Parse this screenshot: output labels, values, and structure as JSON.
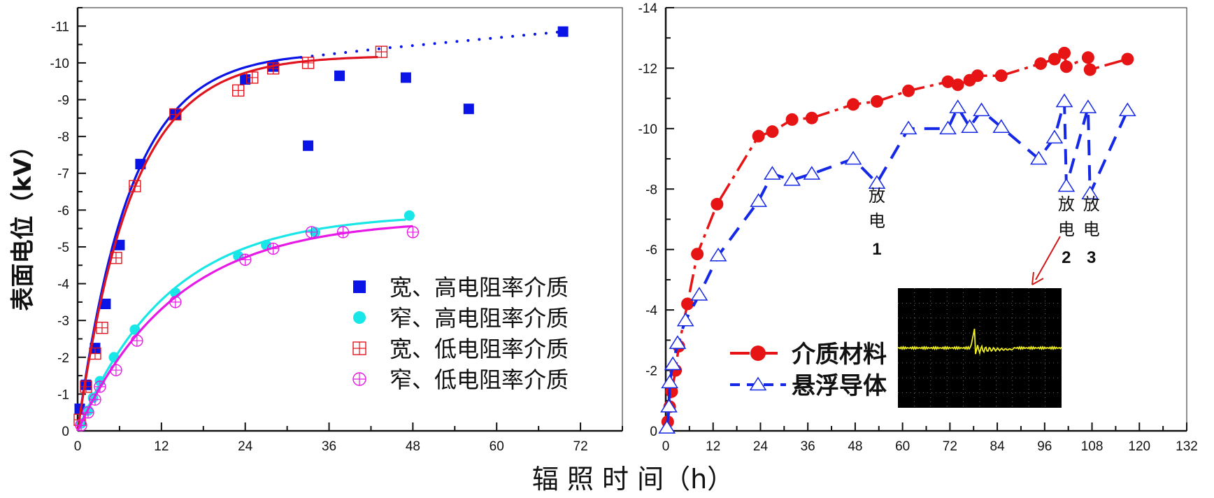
{
  "shared": {
    "xlabel": "辐 照 时 间（h）"
  },
  "chart_data": [
    {
      "type": "scatter",
      "ylabel": "表面电位（kV）",
      "xlim": [
        0,
        78
      ],
      "ylim": [
        0,
        -11.5
      ],
      "x_ticks": [
        0,
        12,
        24,
        36,
        48,
        60,
        72
      ],
      "y_ticks": [
        0,
        -1,
        -2,
        -3,
        -4,
        -5,
        -6,
        -7,
        -8,
        -9,
        -10,
        -11
      ],
      "legend_position": "center-right",
      "series": [
        {
          "name": "宽、高电阻率介质",
          "marker": "filled-square",
          "color": "#0a14e6",
          "points": [
            [
              0.3,
              -0.6
            ],
            [
              1.2,
              -1.25
            ],
            [
              2.5,
              -2.25
            ],
            [
              4,
              -3.45
            ],
            [
              6,
              -5.05
            ],
            [
              9,
              -7.25
            ],
            [
              14,
              -8.6
            ],
            [
              24,
              -9.55
            ],
            [
              28,
              -9.9
            ],
            [
              33,
              -7.75
            ],
            [
              37.5,
              -9.65
            ],
            [
              47,
              -9.6
            ],
            [
              56,
              -8.75
            ],
            [
              69.5,
              -10.85
            ]
          ],
          "fit": {
            "form": "a(1-exp(-t/tau))",
            "a": -10.3,
            "tau": 7.5,
            "t_end": 32
          },
          "extension_dotted": [
            [
              32,
              -10.15
            ],
            [
              44,
              -10.4
            ],
            [
              69.5,
              -10.85
            ]
          ]
        },
        {
          "name": "窄、高电阻率介质",
          "marker": "filled-circle",
          "color": "#19e6e6",
          "points": [
            [
              0.5,
              -0.2
            ],
            [
              1.5,
              -0.55
            ],
            [
              2.2,
              -0.9
            ],
            [
              3.2,
              -1.35
            ],
            [
              5.2,
              -2.0
            ],
            [
              8.2,
              -2.75
            ],
            [
              14,
              -3.75
            ],
            [
              23,
              -4.75
            ],
            [
              27,
              -5.05
            ],
            [
              34,
              -5.4
            ],
            [
              47.5,
              -5.85
            ]
          ],
          "fit": {
            "form": "a(1-exp(-t/tau))",
            "a": -5.9,
            "tau": 13,
            "t_end": 47
          }
        },
        {
          "name": "宽、低电阻率介质",
          "marker": "open-square-plus",
          "color": "#e0141e",
          "points": [
            [
              0.3,
              -0.3
            ],
            [
              1.2,
              -1.2
            ],
            [
              2.5,
              -2.1
            ],
            [
              3.5,
              -2.8
            ],
            [
              5.5,
              -4.7
            ],
            [
              8.2,
              -6.65
            ],
            [
              14,
              -8.6
            ],
            [
              23,
              -9.25
            ],
            [
              25,
              -9.6
            ],
            [
              28,
              -9.85
            ],
            [
              33,
              -10.0
            ],
            [
              43.5,
              -10.3
            ]
          ],
          "fit": {
            "form": "a(1-exp(-t/tau))",
            "a": -10.2,
            "tau": 7.8,
            "t_end": 43
          }
        },
        {
          "name": "窄、低电阻率介质",
          "marker": "open-circle-plus",
          "color": "#e619e6",
          "points": [
            [
              0.5,
              -0.15
            ],
            [
              1.5,
              -0.5
            ],
            [
              2.5,
              -0.85
            ],
            [
              3.2,
              -1.2
            ],
            [
              5.5,
              -1.65
            ],
            [
              8.5,
              -2.45
            ],
            [
              14,
              -3.5
            ],
            [
              24,
              -4.65
            ],
            [
              28,
              -4.95
            ],
            [
              33.5,
              -5.4
            ],
            [
              38,
              -5.4
            ],
            [
              48,
              -5.4
            ]
          ],
          "fit": {
            "form": "a(1-exp(-t/tau))",
            "a": -5.75,
            "tau": 14,
            "t_end": 48
          }
        }
      ]
    },
    {
      "type": "line",
      "xlim": [
        0,
        132
      ],
      "ylim": [
        0,
        -14
      ],
      "x_ticks": [
        0,
        12,
        24,
        36,
        48,
        60,
        72,
        84,
        96,
        108,
        120,
        132
      ],
      "y_ticks": [
        0,
        -2,
        -4,
        -6,
        -8,
        -10,
        -12,
        -14
      ],
      "legend_position": "bottom-center",
      "series": [
        {
          "name": "介质材料",
          "marker": "filled-circle",
          "line": "dash-dot",
          "color": "#e61414",
          "points": [
            [
              0.5,
              -0.3
            ],
            [
              1,
              -0.8
            ],
            [
              1.5,
              -1.3
            ],
            [
              2.5,
              -2.0
            ],
            [
              3.3,
              -2.8
            ],
            [
              5.5,
              -4.2
            ],
            [
              8,
              -5.85
            ],
            [
              13,
              -7.5
            ],
            [
              23.5,
              -9.75
            ],
            [
              27,
              -9.9
            ],
            [
              32,
              -10.3
            ],
            [
              37,
              -10.35
            ],
            [
              47.5,
              -10.8
            ],
            [
              53.5,
              -10.9
            ],
            [
              61.5,
              -11.25
            ],
            [
              71.5,
              -11.55
            ],
            [
              74,
              -11.45
            ],
            [
              77,
              -11.6
            ],
            [
              79,
              -11.75
            ],
            [
              85,
              -11.75
            ],
            [
              95,
              -12.15
            ],
            [
              98.5,
              -12.3
            ],
            [
              101,
              -12.5
            ],
            [
              101.5,
              -12.05
            ],
            [
              107,
              -12.35
            ],
            [
              107.5,
              -11.95
            ],
            [
              117,
              -12.3
            ]
          ]
        },
        {
          "name": "悬浮导体",
          "marker": "open-triangle",
          "line": "dashed",
          "color": "#1428e6",
          "points": [
            [
              0.3,
              -0.1
            ],
            [
              0.8,
              -0.8
            ],
            [
              1,
              -1.6
            ],
            [
              1.8,
              -2.2
            ],
            [
              3,
              -2.9
            ],
            [
              5,
              -3.65
            ],
            [
              8.5,
              -4.5
            ],
            [
              13.3,
              -5.8
            ],
            [
              23.5,
              -7.6
            ],
            [
              27,
              -8.5
            ],
            [
              32,
              -8.3
            ],
            [
              37,
              -8.5
            ],
            [
              47.5,
              -9.0
            ],
            [
              53.5,
              -8.2
            ],
            [
              61.5,
              -10.0
            ],
            [
              71.5,
              -10.0
            ],
            [
              74,
              -10.7
            ],
            [
              77,
              -10.05
            ],
            [
              80,
              -10.6
            ],
            [
              85,
              -10.05
            ],
            [
              94.5,
              -9.0
            ],
            [
              98.5,
              -9.7
            ],
            [
              101,
              -10.9
            ],
            [
              101.5,
              -8.1
            ],
            [
              107,
              -10.7
            ],
            [
              107.5,
              -7.85
            ],
            [
              117,
              -10.6
            ]
          ]
        }
      ],
      "annotations": [
        {
          "chars": [
            "放",
            "电"
          ],
          "number": "1",
          "x": 53.5
        },
        {
          "chars": [
            "放",
            "电"
          ],
          "number": "2",
          "x": 101.5
        },
        {
          "chars": [
            "放",
            "电"
          ],
          "number": "3",
          "x": 107.5
        }
      ],
      "inset": {
        "kind": "oscilloscope-waveform",
        "background": "#000000",
        "trace_color": "#f0f01e"
      }
    }
  ]
}
